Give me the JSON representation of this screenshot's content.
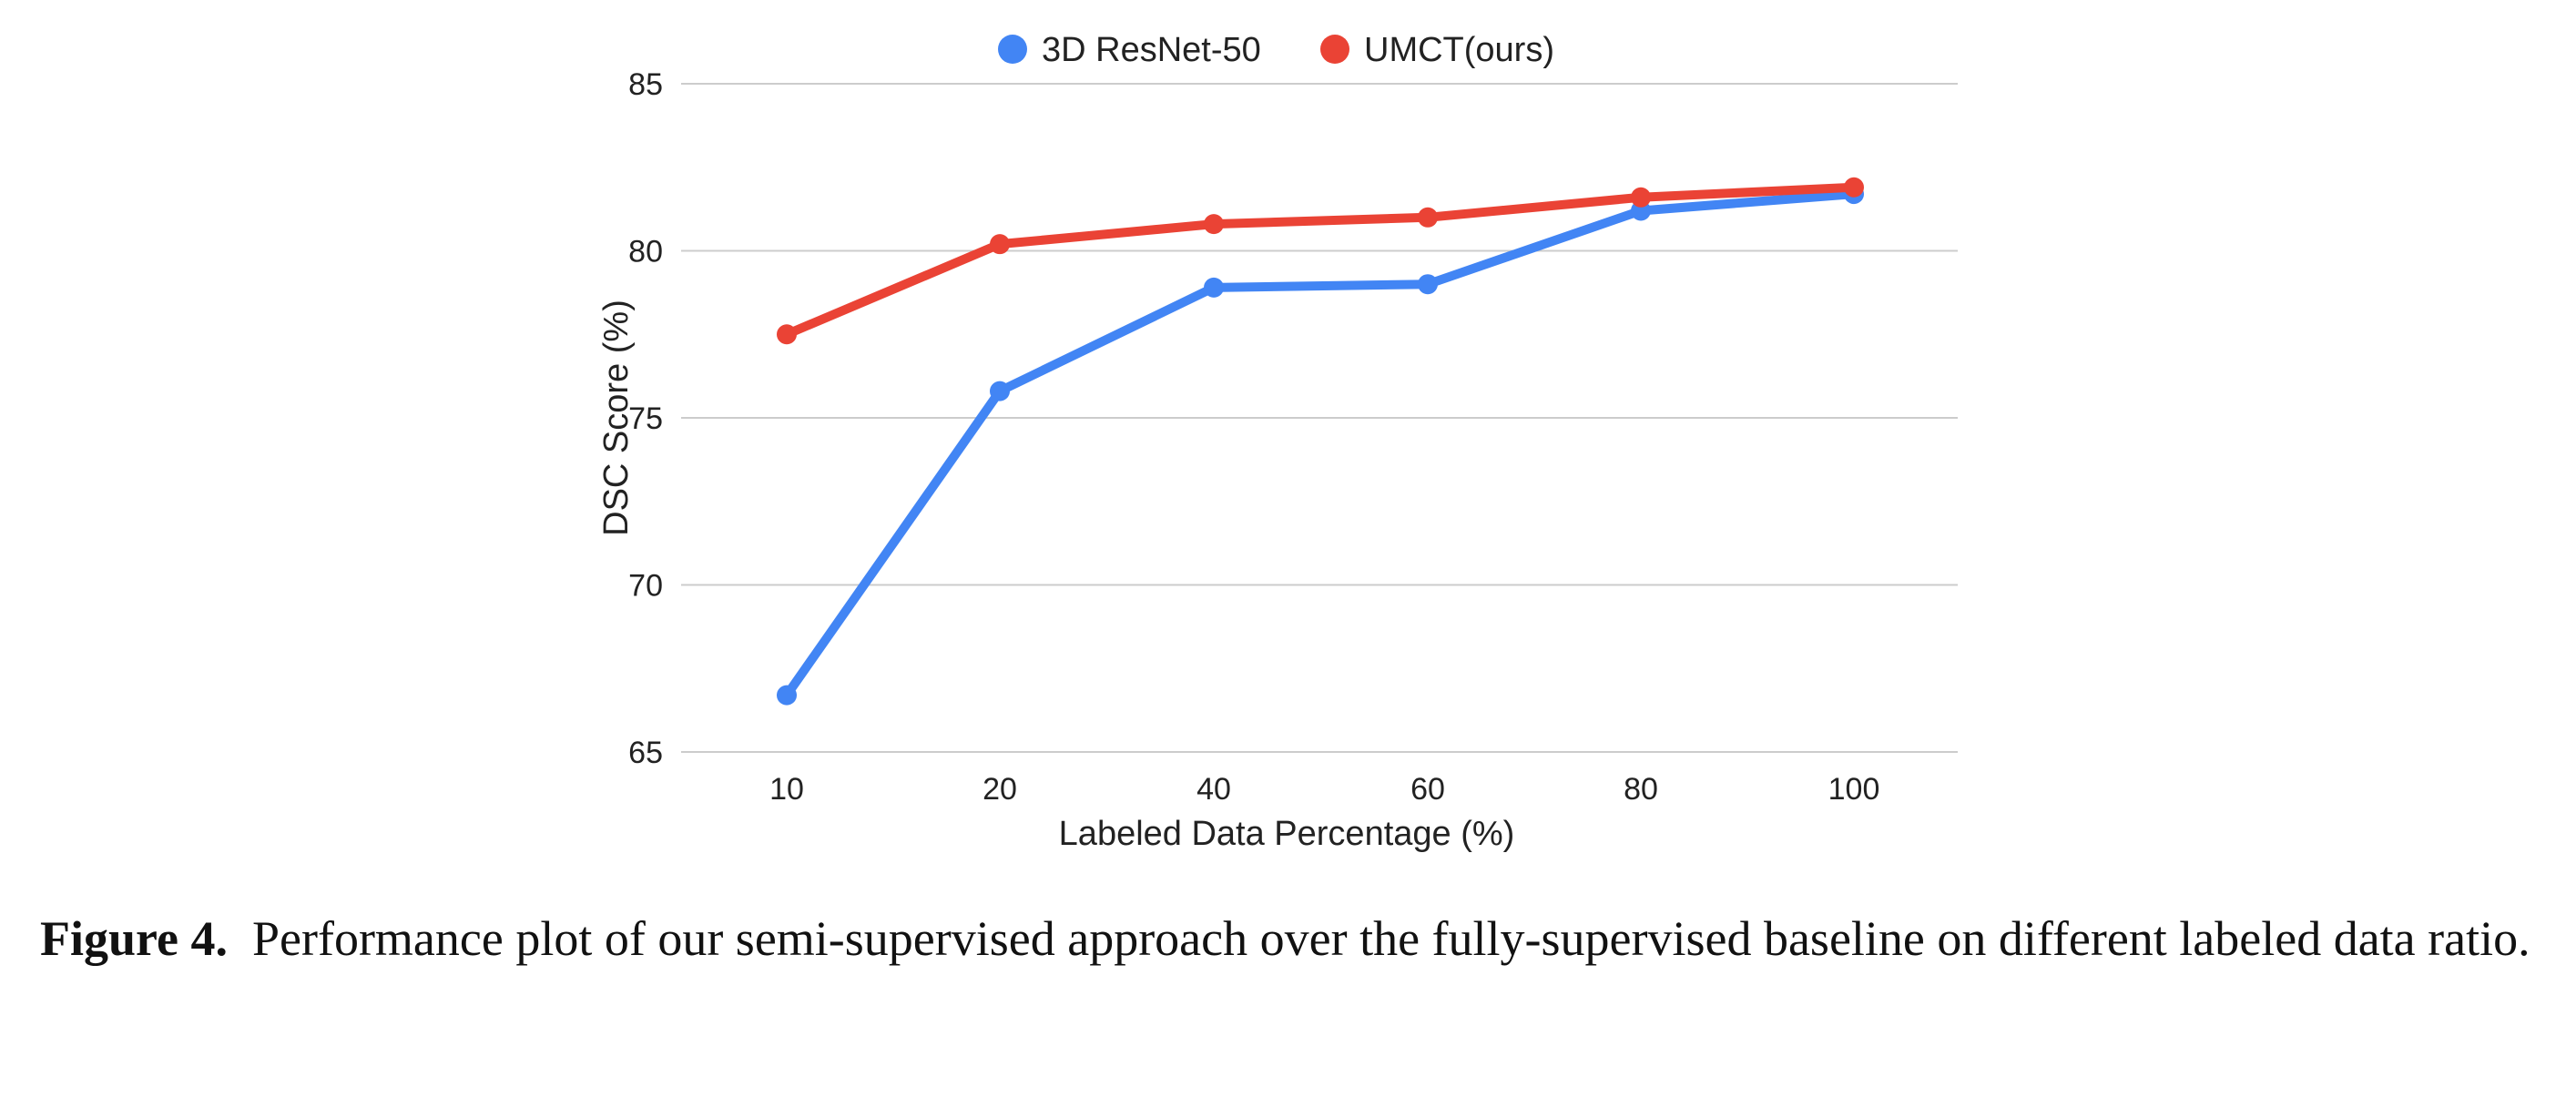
{
  "chart_data": {
    "type": "line",
    "categories": [
      "10",
      "20",
      "40",
      "60",
      "80",
      "100"
    ],
    "xlabel": "Labeled Data Percentage (%)",
    "ylabel": "DSC Score (%)",
    "ylim": [
      65,
      85
    ],
    "yticks": [
      "65",
      "70",
      "75",
      "80",
      "85"
    ],
    "grid": "horizontal",
    "legend_position": "top",
    "series": [
      {
        "name": "3D ResNet-50",
        "color": "#4285f4",
        "values": [
          66.7,
          75.8,
          78.9,
          79.0,
          81.2,
          81.7
        ]
      },
      {
        "name": "UMCT(ours)",
        "color": "#ea4335",
        "values": [
          77.5,
          80.2,
          80.8,
          81.0,
          81.6,
          81.9
        ]
      }
    ]
  },
  "caption": {
    "label": "Figure 4.",
    "text": "Performance plot of our semi-supervised approach over the fully-supervised baseline on different labeled data ratio."
  }
}
